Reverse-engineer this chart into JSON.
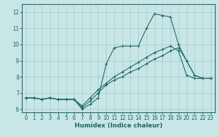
{
  "title": "",
  "xlabel": "Humidex (Indice chaleur)",
  "ylabel": "",
  "background_color": "#c8e6e6",
  "grid_color": "#a8cccc",
  "line_color": "#1a6666",
  "xlim": [
    -0.5,
    23.5
  ],
  "ylim": [
    5.8,
    12.5
  ],
  "yticks": [
    6,
    7,
    8,
    9,
    10,
    11,
    12
  ],
  "xticks": [
    0,
    1,
    2,
    3,
    4,
    5,
    6,
    7,
    8,
    9,
    10,
    11,
    12,
    13,
    14,
    15,
    16,
    17,
    18,
    19,
    20,
    21,
    22,
    23
  ],
  "line1_x": [
    0,
    1,
    2,
    3,
    4,
    5,
    6,
    7,
    8,
    9,
    10,
    11,
    12,
    13,
    14,
    15,
    16,
    17,
    18,
    19,
    20,
    21,
    22,
    23
  ],
  "line1_y": [
    6.7,
    6.7,
    6.6,
    6.7,
    6.6,
    6.6,
    6.6,
    6.0,
    6.3,
    6.7,
    8.8,
    9.8,
    9.9,
    9.9,
    9.9,
    11.0,
    11.9,
    11.8,
    11.7,
    10.0,
    9.0,
    8.1,
    7.9,
    7.9
  ],
  "line2_x": [
    0,
    1,
    2,
    3,
    4,
    5,
    6,
    7,
    8,
    9,
    10,
    11,
    12,
    13,
    14,
    15,
    16,
    17,
    18,
    19,
    20,
    21,
    22,
    23
  ],
  "line2_y": [
    6.7,
    6.7,
    6.6,
    6.7,
    6.6,
    6.6,
    6.6,
    6.1,
    6.5,
    7.0,
    7.5,
    7.8,
    8.0,
    8.3,
    8.5,
    8.8,
    9.1,
    9.3,
    9.6,
    9.8,
    9.0,
    8.1,
    7.9,
    7.9
  ],
  "line3_x": [
    0,
    1,
    2,
    3,
    4,
    5,
    6,
    7,
    8,
    9,
    10,
    11,
    12,
    13,
    14,
    15,
    16,
    17,
    18,
    19,
    20,
    21,
    22,
    23
  ],
  "line3_y": [
    6.7,
    6.7,
    6.6,
    6.7,
    6.6,
    6.6,
    6.6,
    6.2,
    6.7,
    7.2,
    7.6,
    8.0,
    8.3,
    8.6,
    8.9,
    9.2,
    9.5,
    9.7,
    9.9,
    9.6,
    8.1,
    7.9,
    7.9,
    7.9
  ]
}
